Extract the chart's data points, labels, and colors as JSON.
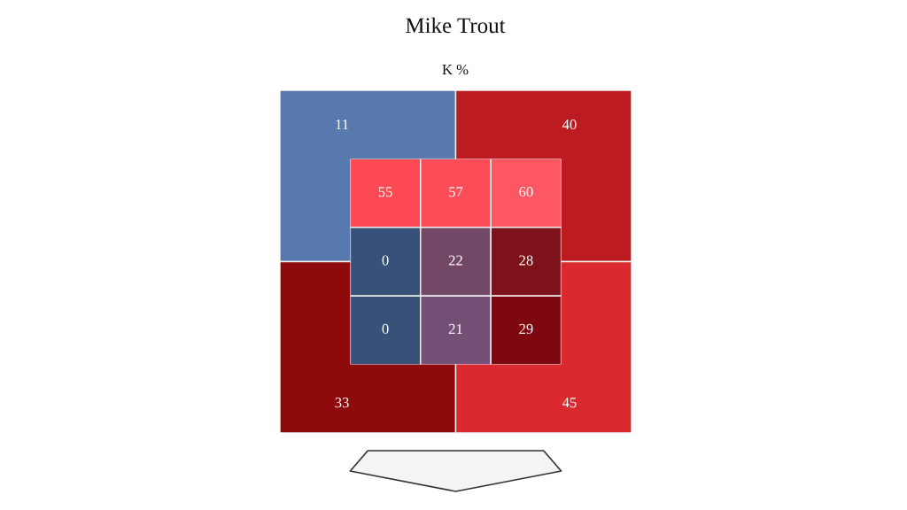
{
  "chart_data": [
    {
      "type": "heatmap",
      "title": "Mike Trout",
      "subtitle": "K %",
      "categories": [
        null,
        null,
        null
      ],
      "y_categories": [
        null,
        null,
        null
      ],
      "cells": [
        [
          55,
          57,
          60
        ],
        [
          0,
          22,
          28
        ],
        [
          0,
          21,
          29
        ]
      ],
      "colors": [
        [
          "#fc4953",
          "#fc4c58",
          "#fd5862"
        ],
        [
          "#385178",
          "#724866",
          "#7e121b"
        ],
        [
          "#385178",
          "#745076",
          "#7d0810"
        ]
      ],
      "data_labels": true
    },
    {
      "type": "heatmap",
      "categories": [
        null,
        null
      ],
      "y_categories": [
        null,
        null
      ],
      "cells": [
        [
          11,
          40
        ],
        [
          33,
          45
        ]
      ],
      "colors": [
        [
          "#5879ae",
          "#bc1b21"
        ],
        [
          "#8f0a0b",
          "#da2a30"
        ]
      ],
      "data_labels": true
    }
  ]
}
